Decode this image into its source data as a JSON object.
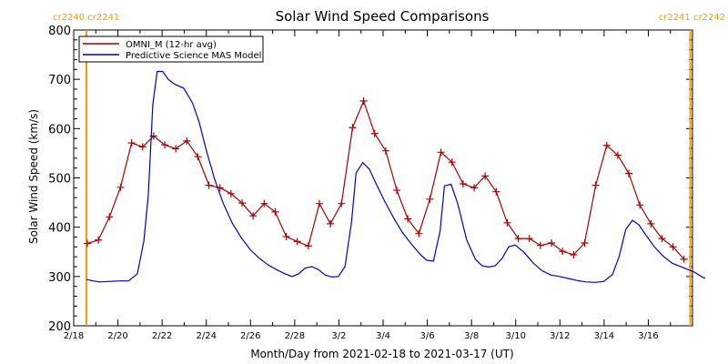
{
  "chart_data": {
    "type": "line",
    "title": "Solar Wind Speed Comparisons",
    "xlabel": "Month/Day from 2021-02-18 to 2021-03-17 (UT)",
    "ylabel": "Solar Wind Speed (km/s)",
    "xlim": [
      0,
      28
    ],
    "ylim": [
      200,
      800
    ],
    "y_ticks": [
      200,
      300,
      400,
      500,
      600,
      700,
      800
    ],
    "x_ticks": [
      {
        "day": 0,
        "label": "2/18"
      },
      {
        "day": 2,
        "label": "2/20"
      },
      {
        "day": 4,
        "label": "2/22"
      },
      {
        "day": 6,
        "label": "2/24"
      },
      {
        "day": 8,
        "label": "2/26"
      },
      {
        "day": 10,
        "label": "2/28"
      },
      {
        "day": 12,
        "label": "3/2"
      },
      {
        "day": 14,
        "label": "3/4"
      },
      {
        "day": 16,
        "label": "3/6"
      },
      {
        "day": 18,
        "label": "3/8"
      },
      {
        "day": 20,
        "label": "3/10"
      },
      {
        "day": 22,
        "label": "3/12"
      },
      {
        "day": 24,
        "label": "3/14"
      },
      {
        "day": 26,
        "label": "3/16"
      }
    ],
    "carrington_markers": [
      {
        "day": 0.0,
        "label": "cr2240 cr2241",
        "side": "left"
      },
      {
        "day": 27.9,
        "label": "cr2241 cr2242",
        "side": "right"
      }
    ],
    "legend": {
      "position": "top-left"
    },
    "series": [
      {
        "name": "OMNI_M (12-hr avg)",
        "color": "#aa0000",
        "marker": "plus",
        "points": [
          [
            0.0,
            367
          ],
          [
            0.5,
            374
          ],
          [
            1.0,
            421
          ],
          [
            1.5,
            481
          ],
          [
            2.0,
            571
          ],
          [
            2.5,
            563
          ],
          [
            3.0,
            585
          ],
          [
            3.5,
            567
          ],
          [
            4.0,
            559
          ],
          [
            4.5,
            575
          ],
          [
            5.0,
            543
          ],
          [
            5.5,
            485
          ],
          [
            6.0,
            480
          ],
          [
            6.5,
            468
          ],
          [
            7.0,
            449
          ],
          [
            7.5,
            423
          ],
          [
            8.0,
            448
          ],
          [
            8.5,
            431
          ],
          [
            9.0,
            381
          ],
          [
            9.5,
            371
          ],
          [
            10.0,
            362
          ],
          [
            10.5,
            448
          ],
          [
            11.0,
            407
          ],
          [
            11.5,
            448
          ],
          [
            12.0,
            602
          ],
          [
            12.5,
            656
          ],
          [
            13.0,
            590
          ],
          [
            13.5,
            555
          ],
          [
            14.0,
            475
          ],
          [
            14.5,
            417
          ],
          [
            15.0,
            387
          ],
          [
            15.5,
            457
          ],
          [
            16.0,
            552
          ],
          [
            16.5,
            532
          ],
          [
            17.0,
            488
          ],
          [
            17.5,
            480
          ],
          [
            18.0,
            504
          ],
          [
            18.5,
            472
          ],
          [
            19.0,
            409
          ],
          [
            19.5,
            377
          ],
          [
            20.0,
            377
          ],
          [
            20.5,
            363
          ],
          [
            21.0,
            368
          ],
          [
            21.5,
            351
          ],
          [
            22.0,
            344
          ],
          [
            22.5,
            368
          ],
          [
            23.0,
            485
          ],
          [
            23.5,
            566
          ],
          [
            24.0,
            546
          ],
          [
            24.5,
            509
          ],
          [
            25.0,
            445
          ],
          [
            25.5,
            407
          ],
          [
            26.0,
            377
          ],
          [
            26.5,
            360
          ],
          [
            27.0,
            335
          ]
        ]
      },
      {
        "name": "Predictive Science MAS Model",
        "color": "#0000cc",
        "marker": "none",
        "points": [
          [
            0.0,
            294
          ],
          [
            0.3,
            291
          ],
          [
            0.6,
            289
          ],
          [
            1.0,
            290
          ],
          [
            1.5,
            291
          ],
          [
            1.9,
            291
          ],
          [
            2.3,
            305
          ],
          [
            2.6,
            372
          ],
          [
            2.8,
            466
          ],
          [
            3.0,
            648
          ],
          [
            3.2,
            716
          ],
          [
            3.45,
            716
          ],
          [
            3.7,
            700
          ],
          [
            4.0,
            690
          ],
          [
            4.4,
            682
          ],
          [
            4.8,
            652
          ],
          [
            5.1,
            613
          ],
          [
            5.4,
            560
          ],
          [
            5.8,
            497
          ],
          [
            6.2,
            447
          ],
          [
            6.6,
            408
          ],
          [
            7.0,
            379
          ],
          [
            7.4,
            355
          ],
          [
            7.8,
            338
          ],
          [
            8.2,
            324
          ],
          [
            8.6,
            314
          ],
          [
            9.0,
            305
          ],
          [
            9.3,
            300
          ],
          [
            9.6,
            305
          ],
          [
            9.9,
            317
          ],
          [
            10.2,
            320
          ],
          [
            10.5,
            314
          ],
          [
            10.8,
            303
          ],
          [
            11.1,
            299
          ],
          [
            11.4,
            300
          ],
          [
            11.7,
            320
          ],
          [
            12.0,
            412
          ],
          [
            12.2,
            510
          ],
          [
            12.5,
            531
          ],
          [
            12.8,
            518
          ],
          [
            13.1,
            489
          ],
          [
            13.5,
            452
          ],
          [
            13.9,
            419
          ],
          [
            14.3,
            389
          ],
          [
            14.7,
            366
          ],
          [
            15.1,
            345
          ],
          [
            15.4,
            333
          ],
          [
            15.7,
            331
          ],
          [
            16.0,
            392
          ],
          [
            16.2,
            484
          ],
          [
            16.5,
            487
          ],
          [
            16.8,
            448
          ],
          [
            17.2,
            375
          ],
          [
            17.6,
            335
          ],
          [
            17.9,
            322
          ],
          [
            18.2,
            319
          ],
          [
            18.5,
            322
          ],
          [
            18.8,
            336
          ],
          [
            19.1,
            360
          ],
          [
            19.4,
            364
          ],
          [
            19.8,
            349
          ],
          [
            20.2,
            328
          ],
          [
            20.6,
            312
          ],
          [
            21.0,
            303
          ],
          [
            21.4,
            300
          ],
          [
            21.8,
            296
          ],
          [
            22.2,
            292
          ],
          [
            22.6,
            289
          ],
          [
            23.0,
            288
          ],
          [
            23.4,
            290
          ],
          [
            23.8,
            304
          ],
          [
            24.1,
            340
          ],
          [
            24.4,
            395
          ],
          [
            24.7,
            414
          ],
          [
            25.0,
            405
          ],
          [
            25.3,
            385
          ],
          [
            25.7,
            360
          ],
          [
            26.1,
            341
          ],
          [
            26.5,
            327
          ],
          [
            27.0,
            318
          ],
          [
            27.5,
            309
          ],
          [
            27.9,
            298
          ],
          [
            28.0,
            297
          ]
        ]
      }
    ]
  }
}
